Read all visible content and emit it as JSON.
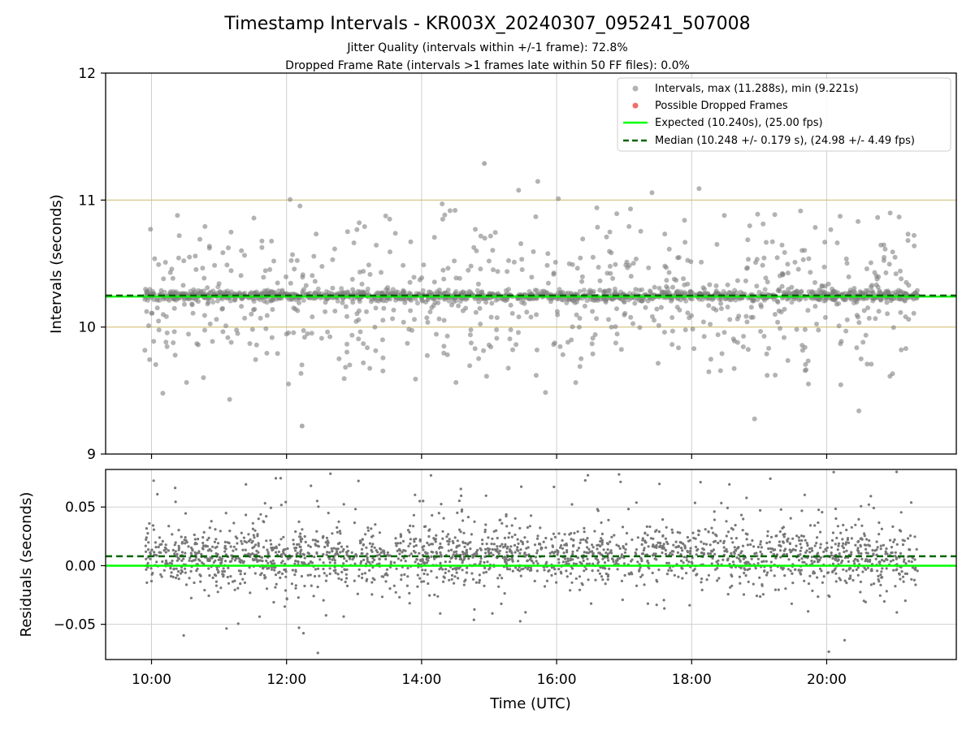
{
  "colors": {
    "points": "#808080",
    "dropped": "#ef5350",
    "expected": "#00ff00",
    "median": "#006400",
    "band": "#d2c07a",
    "grid": "#cfcfcf",
    "residual_points": "#777777"
  },
  "chart_data": [
    {
      "type": "scatter",
      "title": "Timestamp Intervals - KR003X_20240307_095241_507008",
      "subtitle_lines": [
        "Jitter Quality (intervals within +/-1 frame): 72.8%",
        "Dropped Frame Rate (intervals >1 frames late within 50 FF files): 0.0%"
      ],
      "xlabel": "",
      "ylabel": "Intervals (seconds)",
      "xlim": [
        9.32,
        21.92
      ],
      "ylim": [
        9,
        12
      ],
      "x_ticks": [
        10,
        12,
        14,
        16,
        18,
        20
      ],
      "x_tick_labels": [
        "10:00",
        "12:00",
        "14:00",
        "16:00",
        "18:00",
        "20:00"
      ],
      "y_ticks": [
        9,
        10,
        11,
        12
      ],
      "y_tick_labels": [
        "9",
        "10",
        "11",
        "12"
      ],
      "time_range": [
        9.9,
        21.35
      ],
      "band_lines": [
        10,
        11
      ],
      "expected": 10.24,
      "median": 10.248,
      "max": 11.288,
      "min": 9.221,
      "legend": [
        "Intervals, max (11.288s), min (9.221s)",
        "Possible Dropped Frames",
        "Expected (10.240s), (25.00 fps)",
        "Median (10.248 +/- 0.179 s), (24.98 +/- 4.49 fps)"
      ],
      "legend_position": "top-right",
      "grid": true
    },
    {
      "type": "scatter",
      "title": "",
      "xlabel": "Time (UTC)",
      "ylabel": "Residuals (seconds)",
      "xlim": [
        9.32,
        21.92
      ],
      "ylim": [
        -0.08,
        0.082
      ],
      "x_ticks": [
        10,
        12,
        14,
        16,
        18,
        20
      ],
      "x_tick_labels": [
        "10:00",
        "12:00",
        "14:00",
        "16:00",
        "18:00",
        "20:00"
      ],
      "y_ticks": [
        0.05,
        0,
        -0.05
      ],
      "y_tick_labels": [
        "0.05",
        "0.00",
        "−0.05"
      ],
      "expected": 0.0,
      "median": 0.008,
      "grid": true
    }
  ]
}
